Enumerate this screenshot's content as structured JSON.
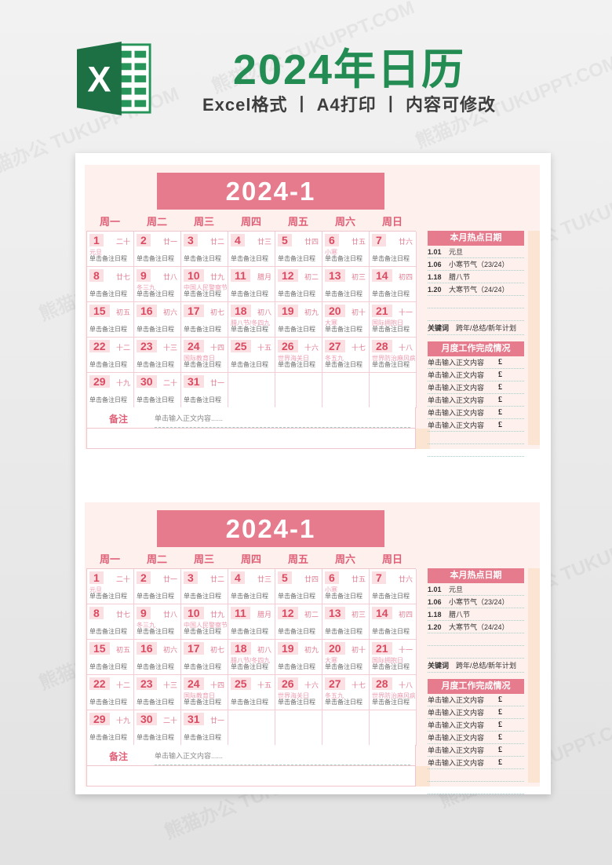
{
  "watermark": {
    "text": "熊猫办公 TUKUPPT.COM"
  },
  "header": {
    "logo": "excel-icon",
    "title": "2024年日历",
    "subtitle": "Excel格式 丨 A4打印 丨 内容可修改"
  },
  "calendar": {
    "month_title": "2024-1",
    "weekdays": [
      "周一",
      "周二",
      "周三",
      "周四",
      "周五",
      "周六",
      "周日"
    ],
    "schedule_placeholder": "单击备注日程",
    "note_label": "备注",
    "note_placeholder": "单击输入正文内容......",
    "weeks": [
      [
        {
          "day": "1",
          "lunar": "二十",
          "festival": "元旦"
        },
        {
          "day": "2",
          "lunar": "廿一"
        },
        {
          "day": "3",
          "lunar": "廿二"
        },
        {
          "day": "4",
          "lunar": "廿三"
        },
        {
          "day": "5",
          "lunar": "廿四"
        },
        {
          "day": "6",
          "lunar": "廿五",
          "festival": "小寒"
        },
        {
          "day": "7",
          "lunar": "廿六"
        }
      ],
      [
        {
          "day": "8",
          "lunar": "廿七"
        },
        {
          "day": "9",
          "lunar": "廿八",
          "festival": "冬三九"
        },
        {
          "day": "10",
          "lunar": "廿九",
          "festival": "中国人民警察节"
        },
        {
          "day": "11",
          "lunar": "腊月"
        },
        {
          "day": "12",
          "lunar": "初二"
        },
        {
          "day": "13",
          "lunar": "初三"
        },
        {
          "day": "14",
          "lunar": "初四"
        }
      ],
      [
        {
          "day": "15",
          "lunar": "初五"
        },
        {
          "day": "16",
          "lunar": "初六"
        },
        {
          "day": "17",
          "lunar": "初七"
        },
        {
          "day": "18",
          "lunar": "初八",
          "festival": "腊八节/冬四九"
        },
        {
          "day": "19",
          "lunar": "初九"
        },
        {
          "day": "20",
          "lunar": "初十",
          "festival": "大寒"
        },
        {
          "day": "21",
          "lunar": "十一",
          "festival": "国际拥抱日"
        }
      ],
      [
        {
          "day": "22",
          "lunar": "十二"
        },
        {
          "day": "23",
          "lunar": "十三"
        },
        {
          "day": "24",
          "lunar": "十四",
          "festival": "国际教育日"
        },
        {
          "day": "25",
          "lunar": "十五"
        },
        {
          "day": "26",
          "lunar": "十六",
          "festival": "世界海关日"
        },
        {
          "day": "27",
          "lunar": "十七",
          "festival": "冬五九"
        },
        {
          "day": "28",
          "lunar": "十八",
          "festival": "世界防治麻风病日"
        }
      ],
      [
        {
          "day": "29",
          "lunar": "十九"
        },
        {
          "day": "30",
          "lunar": "二十"
        },
        {
          "day": "31",
          "lunar": "廿一"
        },
        null,
        null,
        null,
        null
      ]
    ]
  },
  "sidebar": {
    "hot_dates": {
      "title": "本月热点日期",
      "rows": [
        {
          "date": "1.01",
          "label": "元旦"
        },
        {
          "date": "1.06",
          "label": "小寒节气（23/24）"
        },
        {
          "date": "1.18",
          "label": "腊八节"
        },
        {
          "date": "1.20",
          "label": "大寒节气（24/24）"
        }
      ],
      "keyword_label": "关键词",
      "keywords": "跨年/总结/新年计划"
    },
    "work_status": {
      "title": "月度工作完成情况",
      "row_placeholder": "单击输入正文内容",
      "checkbox_glyph": "£",
      "row_count": 6
    }
  },
  "panel_count": 2,
  "colors": {
    "accent_rose": "#e57b8c",
    "panel_bg": "#fdf0ed",
    "title_green": "#238c52",
    "date_red": "#d94b61",
    "lunar_pink": "#e27e94",
    "festival_pink": "#ee9cb1",
    "dotted_line": "#a6cec8",
    "peach": "#fce4d2",
    "page_bg": "#ebebeb"
  }
}
